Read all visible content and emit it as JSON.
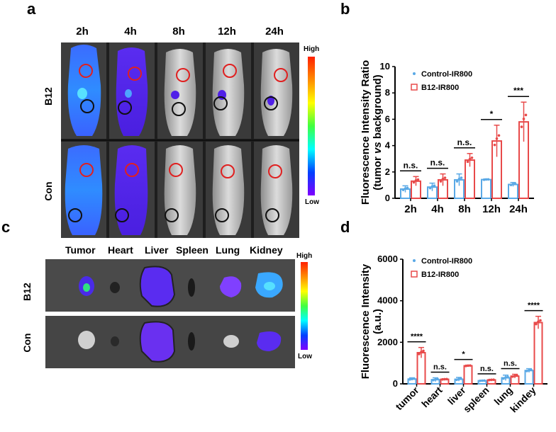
{
  "panel_letters": {
    "a": "a",
    "b": "b",
    "c": "c",
    "d": "d"
  },
  "imaging_a": {
    "timepoints": [
      "2h",
      "4h",
      "8h",
      "12h",
      "24h"
    ],
    "rows": [
      "B12",
      "Con"
    ],
    "scale_high": "High",
    "scale_low": "Low"
  },
  "imaging_c": {
    "organs": [
      "Tumor",
      "Heart",
      "Liver",
      "Spleen",
      "Lung",
      "Kidney"
    ],
    "rows": [
      "B12",
      "Con"
    ],
    "scale_high": "High",
    "scale_low": "Low"
  },
  "colors": {
    "control": "#5aa9e6",
    "b12": "#e84a4a"
  },
  "chart_data": [
    {
      "type": "bar",
      "panel": "b",
      "categories": [
        "2h",
        "4h",
        "8h",
        "12h",
        "24h"
      ],
      "ylabel_line1": "Fluorescence Intensity Ratio",
      "ylabel_line2_pre": "(tumor ",
      "ylabel_line2_it": "vs",
      "ylabel_line2_post": " background)",
      "ylim": [
        0,
        10
      ],
      "yticks": [
        "0",
        "2",
        "4",
        "6",
        "8",
        "10"
      ],
      "series": [
        {
          "name": "Control-IR800",
          "values": [
            0.7,
            0.85,
            1.4,
            1.42,
            1.05
          ],
          "err": [
            0.25,
            0.3,
            0.45,
            0.05,
            0.15
          ]
        },
        {
          "name": "B12-IR800",
          "values": [
            1.3,
            1.4,
            2.9,
            4.35,
            5.8
          ],
          "err": [
            0.35,
            0.45,
            0.5,
            1.2,
            1.5
          ]
        }
      ],
      "significance": [
        "n.s.",
        "n.s.",
        "n.s.",
        "*",
        "***"
      ]
    },
    {
      "type": "bar",
      "panel": "d",
      "categories": [
        "tumor",
        "heart",
        "liver",
        "spleen",
        "lung",
        "kindey"
      ],
      "ylabel_line1": "Fluorescence Intensity",
      "ylabel_line2": "(a.u.)",
      "ylim": [
        0,
        6000
      ],
      "yticks": [
        "0",
        "2000",
        "4000",
        "6000"
      ],
      "series": [
        {
          "name": "Control-IR800",
          "values": [
            230,
            200,
            220,
            150,
            290,
            640
          ],
          "err": [
            60,
            90,
            90,
            20,
            130,
            90
          ]
        },
        {
          "name": "B12-IR800",
          "values": [
            1500,
            220,
            870,
            190,
            370,
            2950
          ],
          "err": [
            250,
            20,
            30,
            20,
            90,
            300
          ]
        }
      ],
      "significance": [
        "****",
        "n.s.",
        "*",
        "n.s.",
        "n.s.",
        "****"
      ]
    }
  ]
}
